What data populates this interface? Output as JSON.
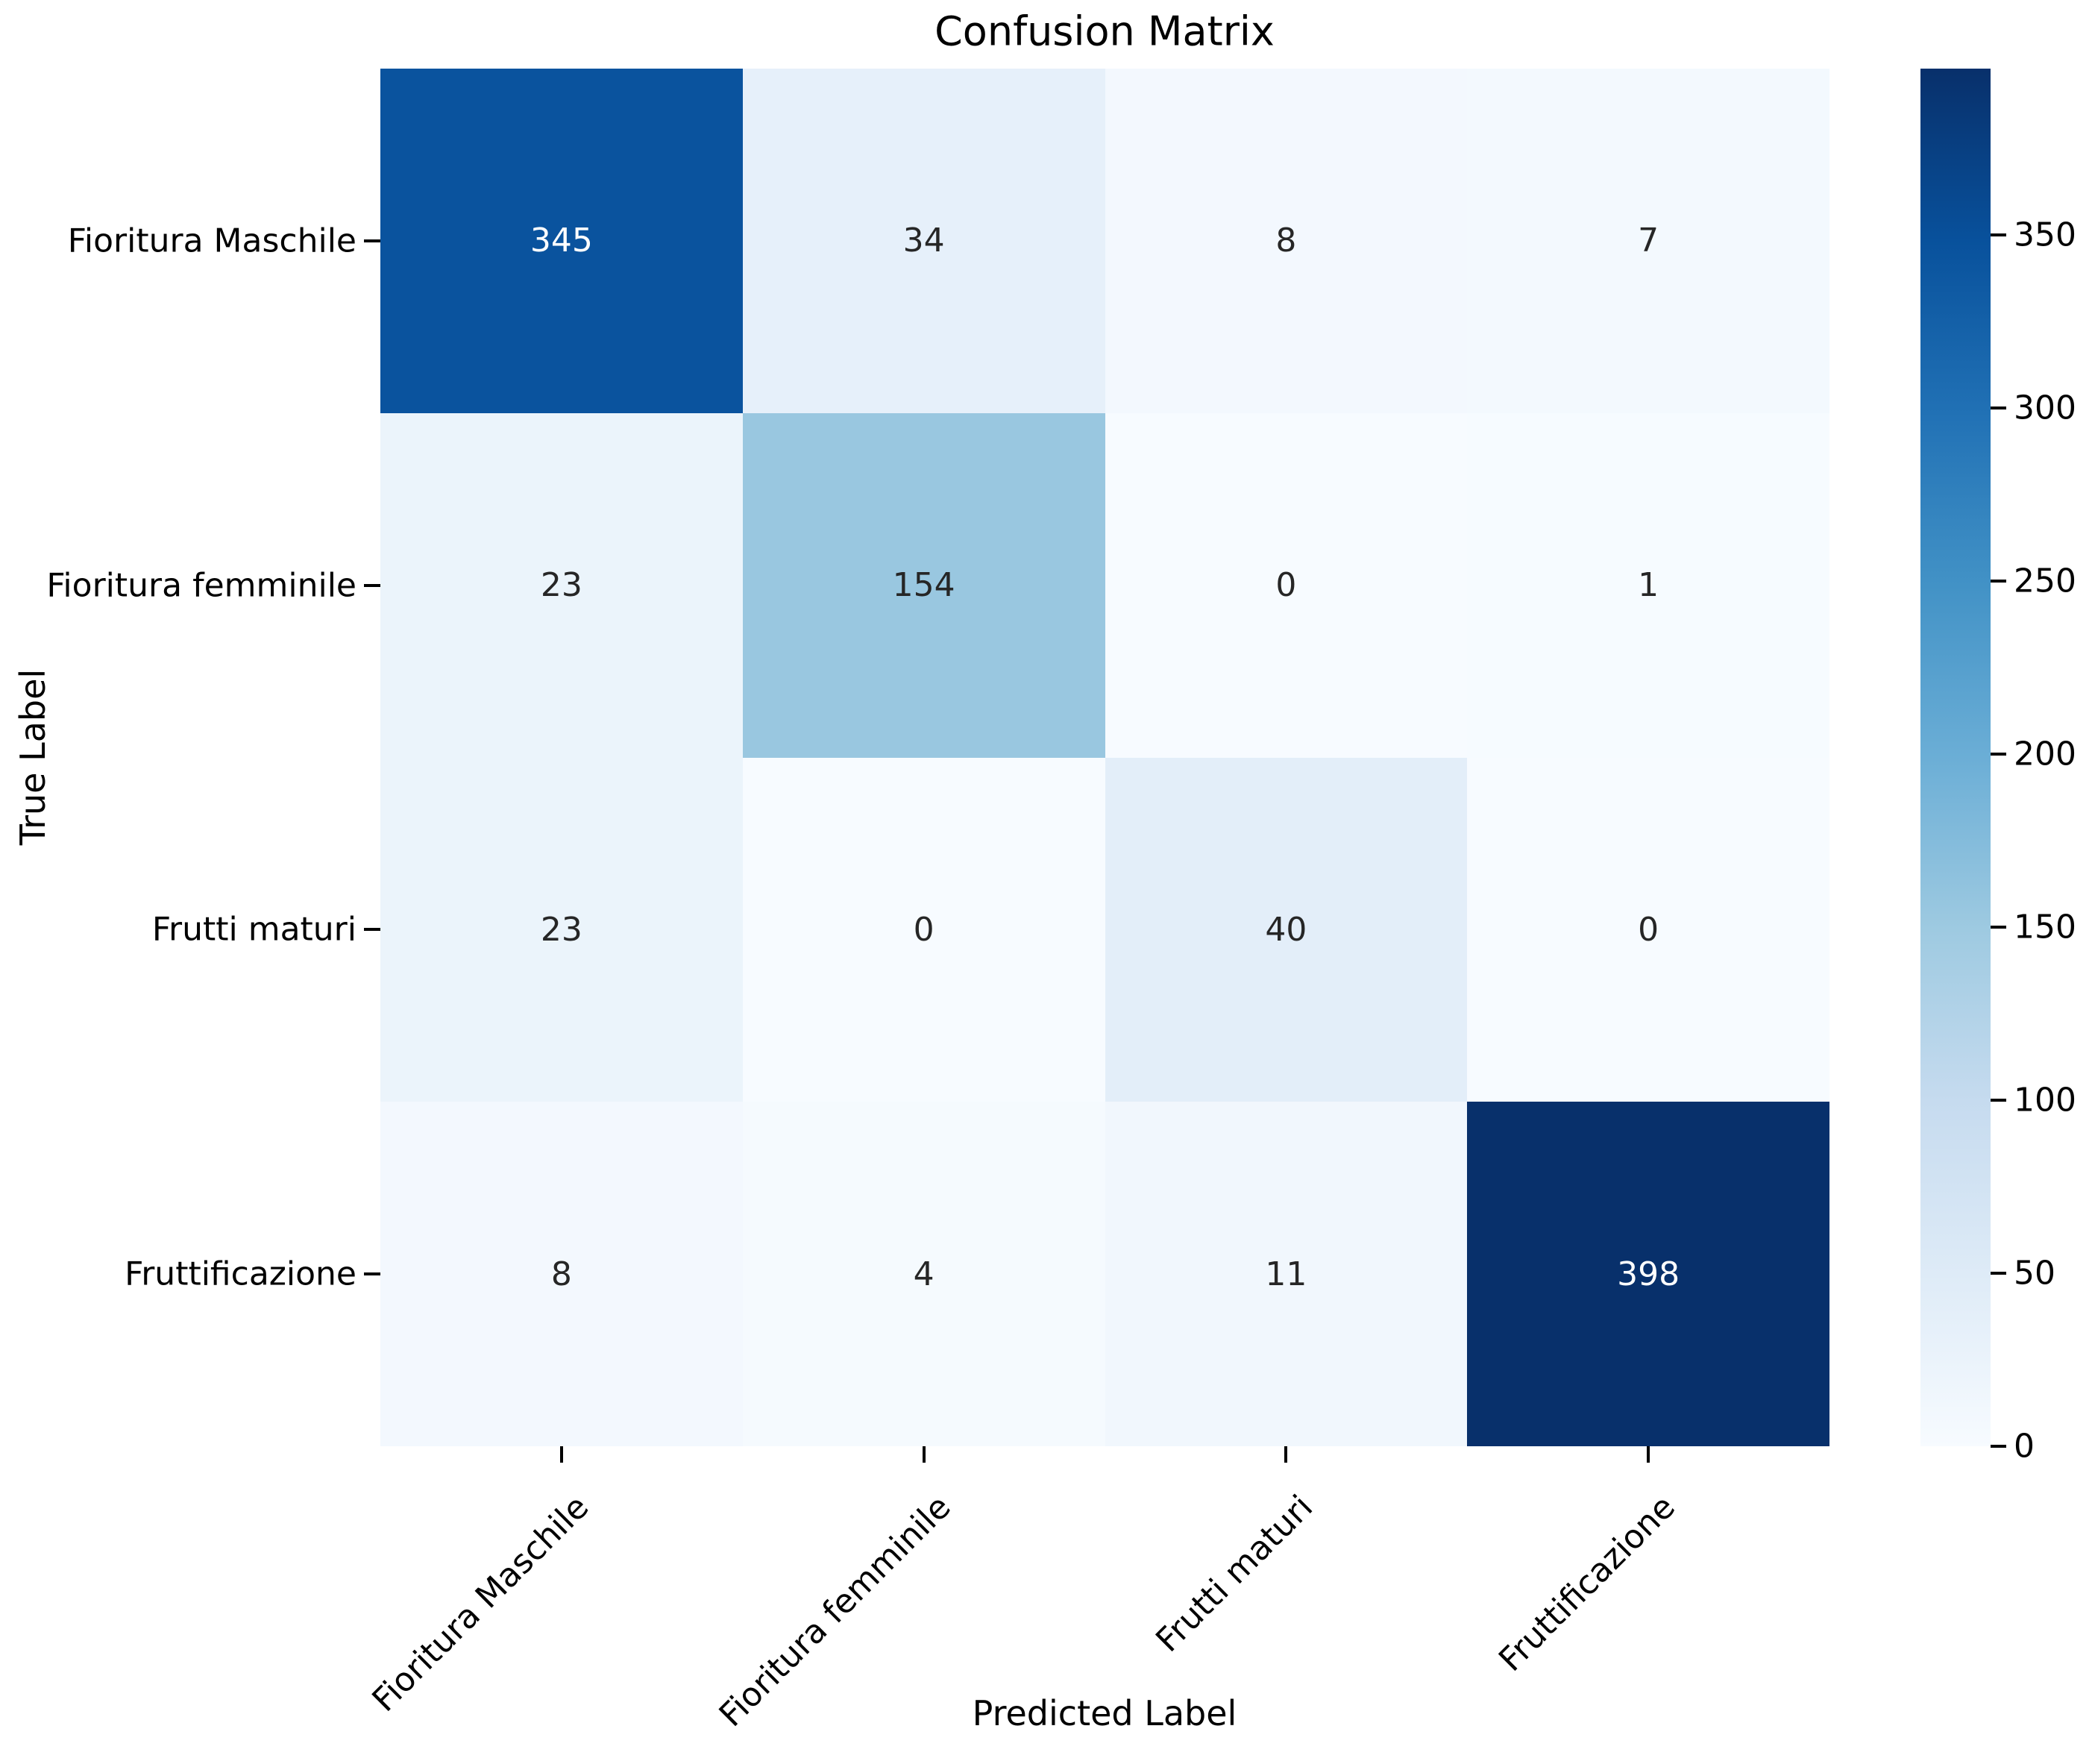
{
  "chart_data": {
    "type": "heatmap",
    "title": "Confusion Matrix",
    "xlabel": "Predicted Label",
    "ylabel": "True Label",
    "x_categories": [
      "Fioritura Maschile",
      "Fioritura femminile",
      "Frutti maturi",
      "Fruttificazione"
    ],
    "y_categories": [
      "Fioritura Maschile",
      "Fioritura femminile",
      "Frutti maturi",
      "Fruttificazione"
    ],
    "matrix": [
      [
        345,
        34,
        8,
        7
      ],
      [
        23,
        154,
        0,
        1
      ],
      [
        23,
        0,
        40,
        0
      ],
      [
        8,
        4,
        11,
        398
      ]
    ],
    "vmin": 0,
    "vmax": 398,
    "colormap": {
      "name": "Blues",
      "stops": [
        "#f7fbff",
        "#deebf7",
        "#c6dbef",
        "#9ecae1",
        "#6baed6",
        "#4292c6",
        "#2171b5",
        "#08519c",
        "#08306b"
      ]
    },
    "colorbar_ticks": [
      0,
      50,
      100,
      150,
      200,
      250,
      300,
      350
    ],
    "annotation_colors": {
      "text_on_dark": "#ffffff",
      "text_on_light": "#262626"
    },
    "tick_color": "#000000",
    "legend_position": "right-colorbar",
    "grid": false
  }
}
